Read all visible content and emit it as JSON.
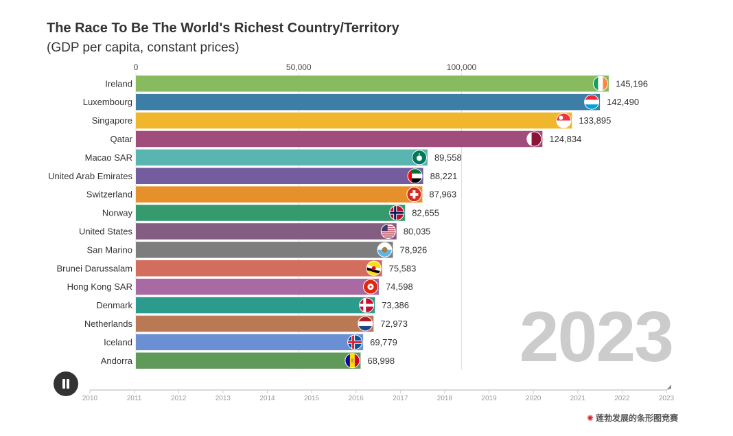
{
  "chart_data": {
    "type": "bar",
    "title": "The Race To Be The World's Richest Country/Territory",
    "subtitle": "(GDP per capita, constant prices)",
    "current_year": "2023",
    "xlim": [
      0,
      152000
    ],
    "x_ticks": [
      0,
      50000,
      100000
    ],
    "x_tick_labels": [
      "0",
      "50,000",
      "100,000"
    ],
    "categories": [
      "Ireland",
      "Luxembourg",
      "Singapore",
      "Qatar",
      "Macao SAR",
      "United Arab Emirates",
      "Switzerland",
      "Norway",
      "United States",
      "San Marino",
      "Brunei Darussalam",
      "Hong Kong SAR",
      "Denmark",
      "Netherlands",
      "Iceland",
      "Andorra"
    ],
    "values": [
      145196,
      142490,
      133895,
      124834,
      89558,
      88221,
      87963,
      82655,
      80035,
      78926,
      75583,
      74598,
      73386,
      72973,
      69779,
      68998
    ],
    "value_labels": [
      "145,196",
      "142,490",
      "133,895",
      "124,834",
      "89,558",
      "88,221",
      "87,963",
      "82,655",
      "80,035",
      "78,926",
      "75,583",
      "74,598",
      "73,386",
      "72,973",
      "69,779",
      "68,998"
    ],
    "colors": [
      "#88bb5f",
      "#3d7ea6",
      "#f1b72c",
      "#a04d7c",
      "#58b5b0",
      "#735d9f",
      "#e6902b",
      "#369a6f",
      "#845e82",
      "#7d7d7d",
      "#d36e5e",
      "#a96aa3",
      "#2c9b8e",
      "#b87954",
      "#6a8fd3",
      "#5f9a58"
    ],
    "flags": [
      "ireland-flag",
      "luxembourg-flag",
      "singapore-flag",
      "qatar-flag",
      "macao-flag",
      "uae-flag",
      "switzerland-flag",
      "norway-flag",
      "usa-flag",
      "san-marino-flag",
      "brunei-flag",
      "hong-kong-flag",
      "denmark-flag",
      "netherlands-flag",
      "iceland-flag",
      "andorra-flag"
    ],
    "timeline": {
      "years": [
        "2010",
        "2011",
        "2012",
        "2013",
        "2014",
        "2015",
        "2016",
        "2017",
        "2018",
        "2019",
        "2020",
        "2021",
        "2022",
        "2023"
      ],
      "current": "2023"
    }
  },
  "controls": {
    "play_state": "playing",
    "pause_icon": "pause-icon"
  },
  "credit": "莲勃发展的条形图竞赛"
}
